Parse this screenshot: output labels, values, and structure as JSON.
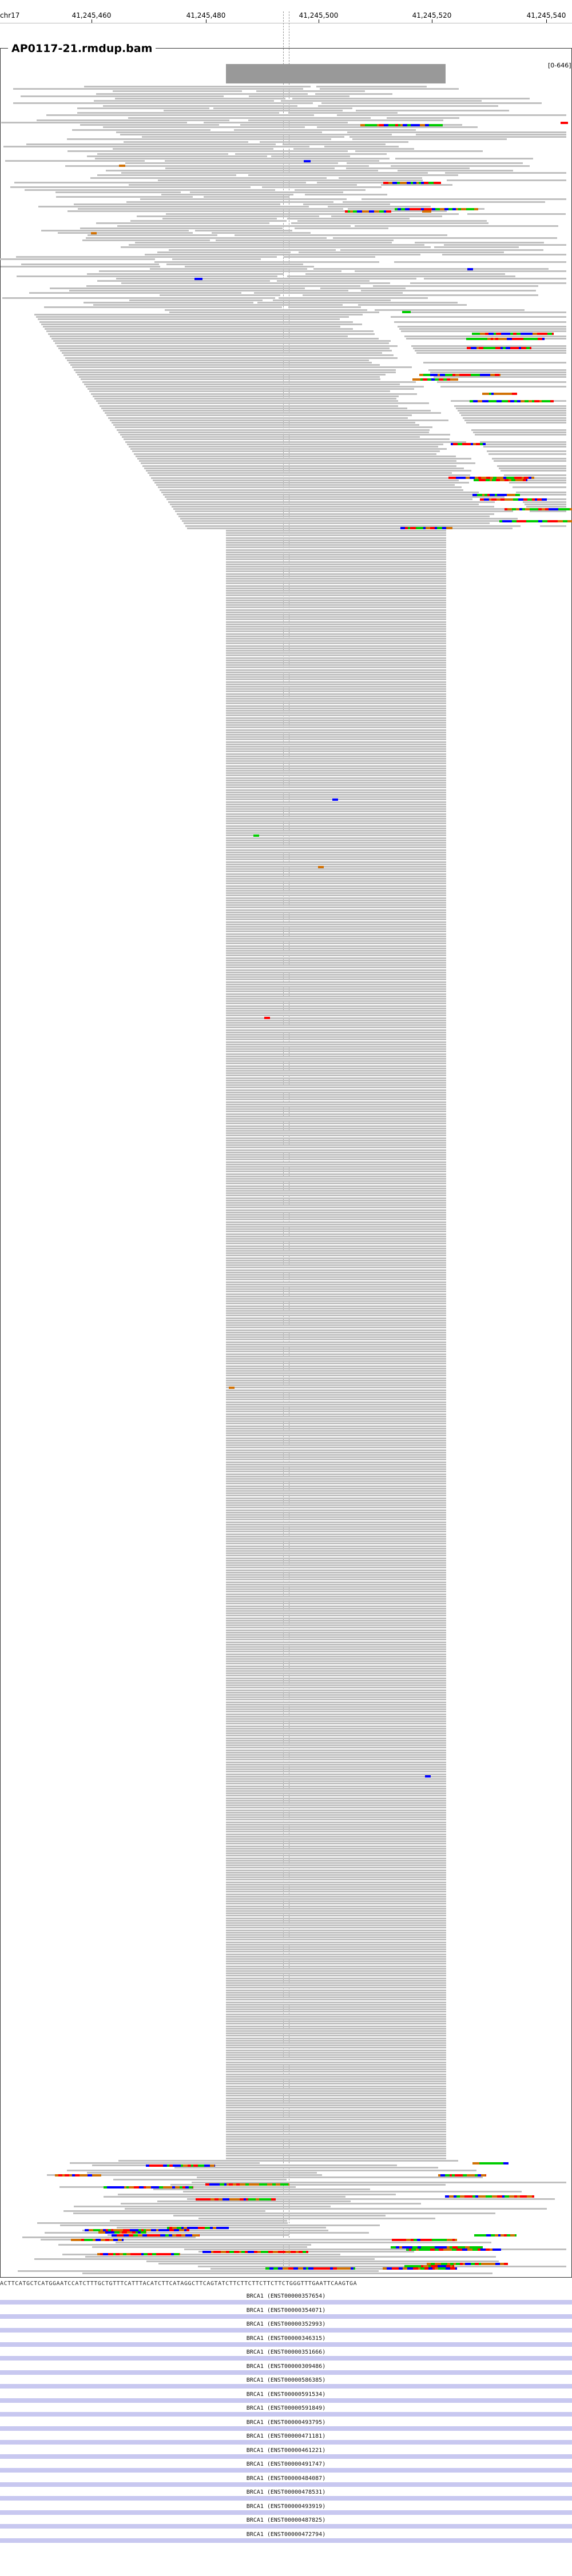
{
  "ruler": {
    "chrom": "chr17",
    "ticks": [
      "41,245,460",
      "41,245,480",
      "41,245,500",
      "41,245,520",
      "41,245,540"
    ]
  },
  "panel": {
    "title": "AP0117-21.rmdup.bam",
    "coverage_range": "[0-646]"
  },
  "reference_sequence": "ACTTCATGCTCATGGAATCCATCTTTGCTGTTTCATTTACATCTTCATAGGCTTCAGTATCTTCTTCTTCTTCTTCTGGGTTTGAATTCAAGTGA",
  "mismatch_colors": {
    "A": "#00cc00",
    "C": "#0000ff",
    "G": "#d17105",
    "T": "#ff0000"
  },
  "transcripts": [
    "BRCA1 (ENST00000357654)",
    "BRCA1 (ENST00000354071)",
    "BRCA1 (ENST00000352993)",
    "BRCA1 (ENST00000346315)",
    "BRCA1 (ENST00000351666)",
    "BRCA1 (ENST00000309486)",
    "BRCA1 (ENST00000586385)",
    "BRCA1 (ENST00000591534)",
    "BRCA1 (ENST00000591849)",
    "BRCA1 (ENST00000493795)",
    "BRCA1 (ENST00000471181)",
    "BRCA1 (ENST00000461221)",
    "BRCA1 (ENST00000491747)",
    "BRCA1 (ENST00000484087)",
    "BRCA1 (ENST00000478531)",
    "BRCA1 (ENST00000493919)",
    "BRCA1 (ENST00000487825)",
    "BRCA1 (ENST00000472794)"
  ]
}
